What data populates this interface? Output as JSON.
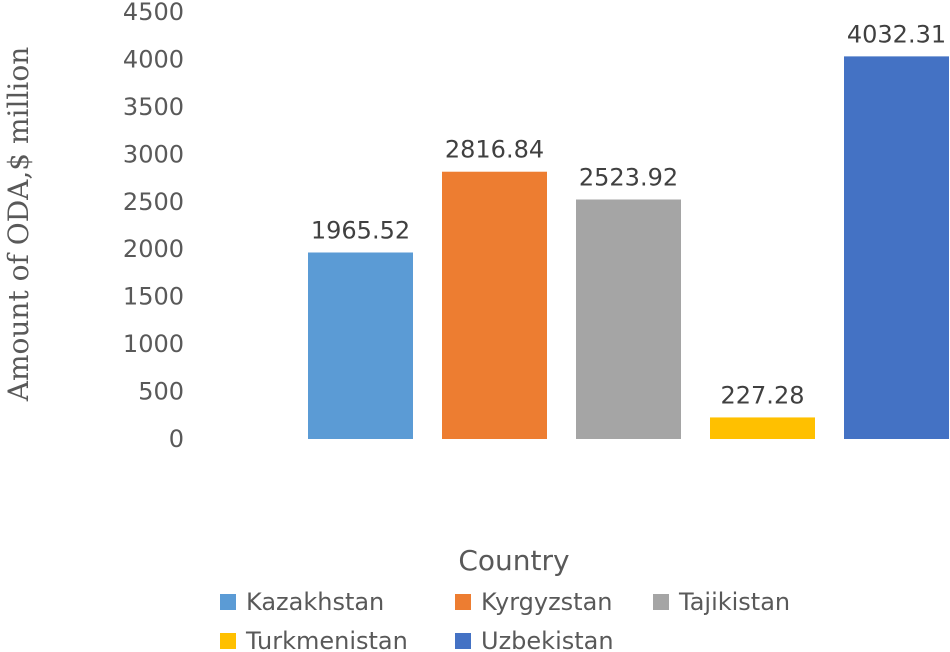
{
  "chart_data": {
    "type": "bar",
    "categories": [
      "Kazakhstan",
      "Kyrgyzstan",
      "Tajikistan",
      "Turkmenistan",
      "Uzbekistan"
    ],
    "values": [
      1965.52,
      2816.84,
      2523.92,
      227.28,
      4032.31
    ],
    "data_labels": [
      "1965.52",
      "2816.84",
      "2523.92",
      "227.28",
      "4032.31"
    ],
    "colors": [
      "#5b9bd5",
      "#ed7d31",
      "#a5a5a5",
      "#ffc000",
      "#4472c4"
    ],
    "xlabel": "Country",
    "ylabel": "Amount of ODA,$ million",
    "ylim": [
      0,
      4500
    ],
    "yticks": [
      "0",
      "500",
      "1000",
      "1500",
      "2000",
      "2500",
      "3000",
      "3500",
      "4000",
      "4500"
    ],
    "grid": false,
    "legend_position": "bottom"
  }
}
